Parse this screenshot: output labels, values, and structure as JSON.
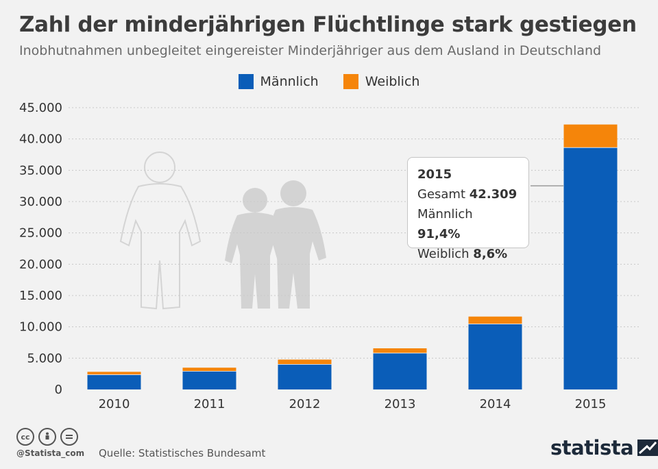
{
  "header": {
    "title": "Zahl der minderjährigen Flüchtlinge stark gestiegen",
    "subtitle": "Inobhutnahmen unbegleitet eingereister Minderjähriger aus dem Ausland in Deutschland"
  },
  "colors": {
    "maennlich": "#0a5db8",
    "weiblich": "#f5850a",
    "grid": "#c8c8c8",
    "figure": "#cfcfcf"
  },
  "chart_data": {
    "type": "bar",
    "stacked": true,
    "categories": [
      "2010",
      "2011",
      "2012",
      "2013",
      "2014",
      "2015"
    ],
    "series": [
      {
        "name": "Männlich",
        "values": [
          2400,
          2950,
          4050,
          5850,
          10500,
          38670
        ]
      },
      {
        "name": "Weiblich",
        "values": [
          420,
          530,
          720,
          720,
          1140,
          3639
        ]
      }
    ],
    "ylim": [
      0,
      45000
    ],
    "yticks": [
      0,
      5000,
      10000,
      15000,
      20000,
      25000,
      30000,
      35000,
      40000,
      45000
    ],
    "ytick_labels": [
      "0",
      "5.000",
      "10.000",
      "15.000",
      "20.000",
      "25.000",
      "30.000",
      "35.000",
      "40.000",
      "45.000"
    ],
    "legend": "top-center",
    "grid": true
  },
  "tooltip": {
    "year": "2015",
    "gesamt_label": "Gesamt",
    "gesamt_value": "42.309",
    "maennlich_label": "Männlich",
    "maennlich_value": "91,4%",
    "weiblich_label": "Weiblich",
    "weiblich_value": "8,6%"
  },
  "footer": {
    "handle": "@Statista_com",
    "source": "Quelle: Statistisches Bundesamt",
    "brand": "statista",
    "license_icons": [
      "cc-icon",
      "by-icon",
      "nd-icon"
    ]
  }
}
